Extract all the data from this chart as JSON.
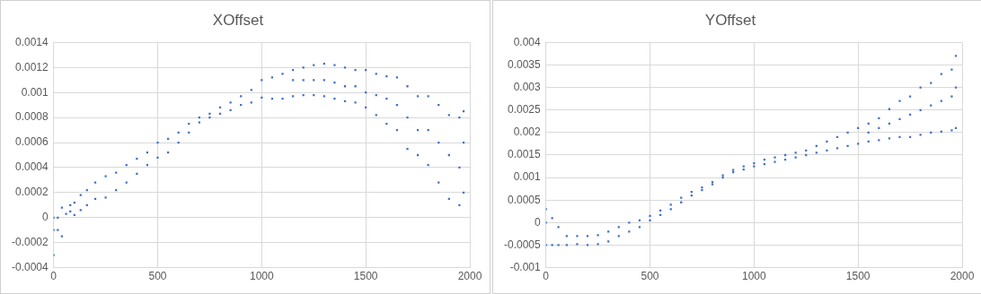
{
  "chart_data": [
    {
      "type": "scatter",
      "title": "XOffset",
      "color": "#4472c4",
      "marker": "square",
      "grid": true,
      "legend": false,
      "xlim": [
        0,
        2000
      ],
      "xticks": [
        0,
        500,
        1000,
        1500,
        2000
      ],
      "ylim": [
        -0.0004,
        0.0014
      ],
      "yticks": [
        -0.0004,
        -0.0002,
        0,
        0.0002,
        0.0004,
        0.0006,
        0.0008,
        0.001,
        0.0012,
        0.0014
      ],
      "x": [
        0,
        0,
        0,
        20,
        20,
        40,
        40,
        60,
        80,
        80,
        100,
        100,
        130,
        130,
        160,
        160,
        200,
        200,
        250,
        250,
        300,
        300,
        350,
        350,
        400,
        400,
        450,
        450,
        500,
        500,
        550,
        550,
        600,
        600,
        650,
        650,
        700,
        700,
        750,
        750,
        800,
        800,
        850,
        850,
        900,
        900,
        950,
        950,
        1000,
        1000,
        1050,
        1050,
        1100,
        1100,
        1150,
        1150,
        1150,
        1200,
        1200,
        1200,
        1250,
        1250,
        1250,
        1300,
        1300,
        1300,
        1350,
        1350,
        1350,
        1400,
        1400,
        1400,
        1450,
        1450,
        1450,
        1500,
        1500,
        1500,
        1550,
        1550,
        1550,
        1600,
        1600,
        1600,
        1650,
        1650,
        1650,
        1700,
        1700,
        1700,
        1750,
        1750,
        1750,
        1800,
        1800,
        1800,
        1850,
        1850,
        1850,
        1900,
        1900,
        1900,
        1950,
        1950,
        1950,
        1970,
        1970,
        1970
      ],
      "values": [
        -0.0003,
        -0.0001,
        0,
        0,
        -0.0001,
        8e-05,
        -0.00015,
        3e-05,
        0.0001,
        5e-05,
        0.00012,
        2e-05,
        0.00018,
        6e-05,
        0.00022,
        0.0001,
        0.00028,
        0.00015,
        0.00033,
        0.00016,
        0.00036,
        0.00022,
        0.00042,
        0.00028,
        0.00047,
        0.00035,
        0.00052,
        0.00042,
        0.0006,
        0.00048,
        0.00063,
        0.00052,
        0.00068,
        0.0006,
        0.00075,
        0.00068,
        0.0008,
        0.00076,
        0.00083,
        0.0008,
        0.00088,
        0.00083,
        0.00092,
        0.00086,
        0.00097,
        0.0009,
        0.00102,
        0.00092,
        0.0011,
        0.00096,
        0.00112,
        0.00095,
        0.00115,
        0.00095,
        0.00118,
        0.00097,
        0.0011,
        0.0012,
        0.00098,
        0.0011,
        0.00122,
        0.00098,
        0.0011,
        0.00123,
        0.00097,
        0.0011,
        0.00122,
        0.00095,
        0.00108,
        0.0012,
        0.00093,
        0.00105,
        0.00118,
        0.00092,
        0.00105,
        0.00118,
        0.00088,
        0.001,
        0.00115,
        0.00082,
        0.00098,
        0.00113,
        0.00075,
        0.00095,
        0.00112,
        0.0007,
        0.0009,
        0.00105,
        0.00055,
        0.0008,
        0.00097,
        0.0005,
        0.0007,
        0.00097,
        0.00042,
        0.0007,
        0.0009,
        0.00028,
        0.0006,
        0.00082,
        0.00015,
        0.0005,
        0.0008,
        0.0001,
        0.0004,
        0.00085,
        0.0002,
        0.0006
      ]
    },
    {
      "type": "scatter",
      "title": "YOffset",
      "color": "#4472c4",
      "marker": "square",
      "grid": true,
      "legend": false,
      "xlim": [
        0,
        2000
      ],
      "xticks": [
        0,
        500,
        1000,
        1500,
        2000
      ],
      "ylim": [
        -0.001,
        0.004
      ],
      "yticks": [
        -0.001,
        -0.0005,
        0,
        0.0005,
        0.001,
        0.0015,
        0.002,
        0.0025,
        0.003,
        0.0035,
        0.004
      ],
      "x": [
        0,
        0,
        0,
        30,
        30,
        60,
        60,
        100,
        100,
        150,
        150,
        200,
        200,
        250,
        250,
        300,
        300,
        350,
        350,
        400,
        400,
        450,
        450,
        500,
        500,
        550,
        550,
        600,
        600,
        650,
        650,
        700,
        700,
        750,
        750,
        800,
        800,
        850,
        850,
        900,
        900,
        950,
        950,
        1000,
        1000,
        1050,
        1050,
        1100,
        1100,
        1150,
        1150,
        1200,
        1200,
        1250,
        1250,
        1300,
        1300,
        1350,
        1350,
        1400,
        1400,
        1450,
        1450,
        1500,
        1500,
        1550,
        1550,
        1550,
        1600,
        1600,
        1600,
        1650,
        1650,
        1650,
        1700,
        1700,
        1700,
        1750,
        1750,
        1750,
        1800,
        1800,
        1800,
        1850,
        1850,
        1850,
        1900,
        1900,
        1900,
        1950,
        1950,
        1950,
        1970,
        1970,
        1970
      ],
      "values": [
        0.0003,
        -0.0005,
        0,
        0.0001,
        -0.0005,
        -0.0001,
        -0.0005,
        -0.0003,
        -0.0005,
        -0.0003,
        -0.00048,
        -0.0003,
        -0.0005,
        -0.00028,
        -0.00048,
        -0.0002,
        -0.00042,
        -0.0001,
        -0.0003,
        0,
        -0.0002,
        5e-05,
        -0.0001,
        0.00015,
        5e-05,
        0.00027,
        0.00017,
        0.0004,
        0.0003,
        0.00055,
        0.00045,
        0.00068,
        0.0006,
        0.00078,
        0.00072,
        0.0009,
        0.00085,
        0.00105,
        0.001,
        0.00117,
        0.00112,
        0.00125,
        0.00118,
        0.00132,
        0.00125,
        0.0014,
        0.0013,
        0.00145,
        0.00135,
        0.0015,
        0.0014,
        0.00155,
        0.00145,
        0.0016,
        0.0015,
        0.0017,
        0.00155,
        0.0018,
        0.0016,
        0.0019,
        0.00165,
        0.002,
        0.0017,
        0.0021,
        0.00175,
        0.0022,
        0.0018,
        0.002,
        0.00232,
        0.00183,
        0.0021,
        0.00252,
        0.00187,
        0.0022,
        0.0027,
        0.0019,
        0.0023,
        0.0028,
        0.0019,
        0.0024,
        0.003,
        0.00195,
        0.0025,
        0.0031,
        0.002,
        0.0026,
        0.0033,
        0.00202,
        0.0027,
        0.0034,
        0.00205,
        0.0028,
        0.0037,
        0.0021,
        0.003
      ]
    }
  ]
}
